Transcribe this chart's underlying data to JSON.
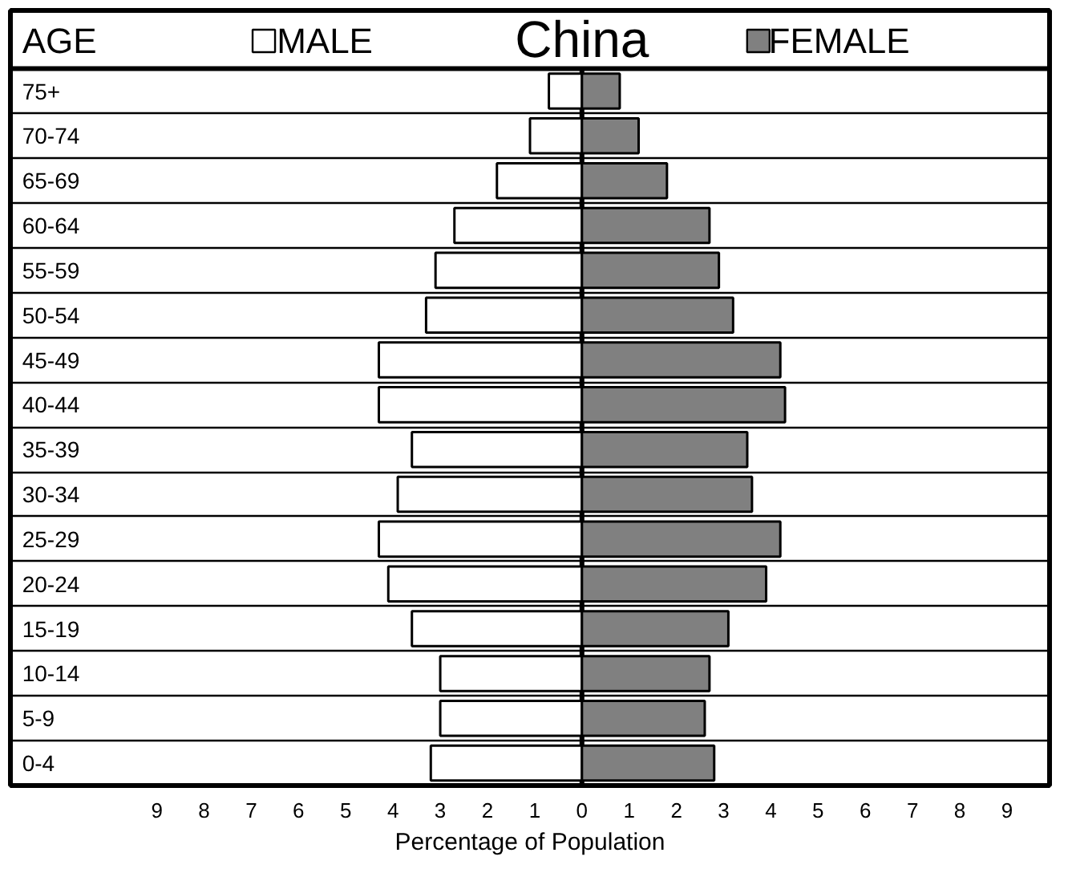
{
  "chart_data": {
    "type": "bar",
    "orientation": "horizontal",
    "title": "China",
    "ylabel": "AGE",
    "xlabel": "Percentage of Population",
    "categories": [
      "75+",
      "70-74",
      "65-69",
      "60-64",
      "55-59",
      "50-54",
      "45-49",
      "40-44",
      "35-39",
      "30-34",
      "25-29",
      "20-24",
      "15-19",
      "10-14",
      "5-9",
      "0-4"
    ],
    "series": [
      {
        "name": "MALE",
        "color": "#ffffff",
        "values": [
          -0.7,
          -1.1,
          -1.8,
          -2.7,
          -3.1,
          -3.3,
          -4.3,
          -4.3,
          -3.6,
          -3.9,
          -4.3,
          -4.1,
          -3.6,
          -3.0,
          -3.0,
          -3.2
        ]
      },
      {
        "name": "FEMALE",
        "color": "#808080",
        "values": [
          0.8,
          1.2,
          1.8,
          2.7,
          2.9,
          3.2,
          4.2,
          4.3,
          3.5,
          3.6,
          4.2,
          3.9,
          3.1,
          2.7,
          2.6,
          2.8
        ]
      }
    ],
    "xlim": [
      -12.1,
      9.9
    ],
    "xticks": [
      {
        "value": -9,
        "label": "9"
      },
      {
        "value": -8,
        "label": "8"
      },
      {
        "value": -7,
        "label": "7"
      },
      {
        "value": -6,
        "label": "6"
      },
      {
        "value": -5,
        "label": "5"
      },
      {
        "value": -4,
        "label": "4"
      },
      {
        "value": -3,
        "label": "3"
      },
      {
        "value": -2,
        "label": "2"
      },
      {
        "value": -1,
        "label": "1"
      },
      0,
      1,
      2,
      3,
      4,
      5,
      6,
      7,
      8,
      9
    ],
    "grid": "y",
    "legend": "top",
    "stacked": true
  }
}
